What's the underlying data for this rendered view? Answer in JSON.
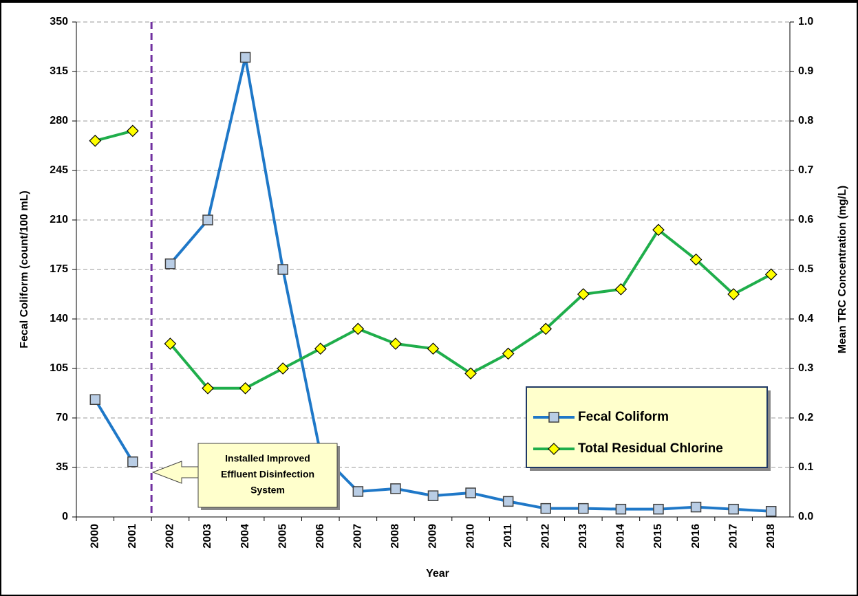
{
  "chart_data": {
    "type": "line",
    "xlabel": "Year",
    "ylabel": "Fecal Coliform (count/100 mL)",
    "y2label": "Mean TRC Concentration (mg/L)",
    "categories": [
      "2000",
      "2001",
      "2002",
      "2003",
      "2004",
      "2005",
      "2006",
      "2007",
      "2008",
      "2009",
      "2010",
      "2011",
      "2012",
      "2013",
      "2014",
      "2015",
      "2016",
      "2017",
      "2018"
    ],
    "series": [
      {
        "name": "Fecal Coliform",
        "color": "#1f78c8",
        "marker": "square",
        "marker_color": "#b9cde5",
        "values": [
          83,
          39,
          179,
          210,
          325,
          175,
          45,
          18,
          20,
          15,
          17,
          11,
          6,
          6,
          5.5,
          5.5,
          7,
          5.5,
          4
        ]
      },
      {
        "name": "Total Residual Chlorine",
        "color": "#1fae4b",
        "marker": "diamond",
        "marker_color": "#ffff00",
        "axis": "y2",
        "values": [
          0.76,
          0.78,
          0.35,
          0.26,
          0.26,
          0.3,
          0.34,
          0.38,
          0.35,
          0.34,
          0.29,
          0.33,
          0.38,
          0.45,
          0.46,
          0.58,
          0.52,
          0.45,
          0.49
        ]
      }
    ],
    "ylim": [
      0,
      350
    ],
    "yticks": [
      0,
      35,
      70,
      105,
      140,
      175,
      210,
      245,
      280,
      315,
      350
    ],
    "y2lim": [
      0,
      1
    ],
    "y2ticks": [
      {
        "value": 0,
        "label": "0.0"
      },
      0.1,
      0.2,
      0.3,
      0.4,
      0.5,
      0.6,
      0.7,
      0.8,
      0.9,
      {
        "value": 1,
        "label": "1.0"
      }
    ],
    "grid": true,
    "legend": "lower right",
    "annotation": {
      "text_lines": [
        "Installed Improved",
        "Effluent Disinfection",
        "System"
      ],
      "between": [
        "2001",
        "2002"
      ],
      "color": "#7030a0"
    }
  }
}
